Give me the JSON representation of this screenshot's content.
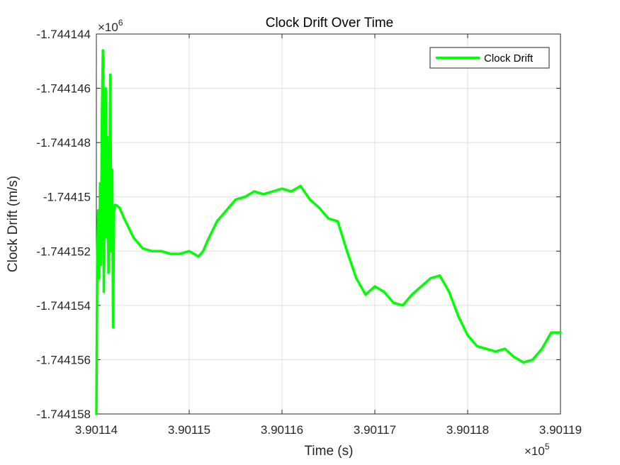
{
  "chart_data": {
    "type": "line",
    "title": "Clock Drift Over Time",
    "xlabel": "Time (s)",
    "ylabel": "Clock Drift (m/s)",
    "x_exponent_label": "×10",
    "x_exponent_power": "5",
    "y_exponent_label": "×10",
    "y_exponent_power": "6",
    "xlim": [
      390114,
      390119
    ],
    "ylim": [
      -1744158,
      -1744144
    ],
    "x_ticks": [
      390114,
      390115,
      390116,
      390117,
      390118,
      390119
    ],
    "x_tick_labels": [
      "3.90114",
      "3.90115",
      "3.90116",
      "3.90117",
      "3.90118",
      "3.90119"
    ],
    "y_ticks": [
      -1744158,
      -1744156,
      -1744154,
      -1744152,
      -1744150,
      -1744148,
      -1744146,
      -1744144
    ],
    "y_tick_labels": [
      "-1.744158",
      "-1.744156",
      "-1.744154",
      "-1.744152",
      "-1.74415",
      "-1.744148",
      "-1.744146",
      "-1.744144"
    ],
    "grid": true,
    "legend_position": "top-right",
    "line_color": "#00ff00",
    "series": [
      {
        "name": "Clock Drift",
        "x": [
          390114.0,
          390114.01,
          390114.02,
          390114.03,
          390114.04,
          390114.05,
          390114.06,
          390114.07,
          390114.08,
          390114.09,
          390114.1,
          390114.11,
          390114.12,
          390114.13,
          390114.14,
          390114.15,
          390114.16,
          390114.17,
          390114.18,
          390114.19,
          390114.2,
          390114.21,
          390114.25,
          390114.3,
          390114.4,
          390114.5,
          390114.6,
          390114.7,
          390114.8,
          390114.9,
          390115.0,
          390115.1,
          390115.15,
          390115.2,
          390115.3,
          390115.4,
          390115.5,
          390115.6,
          390115.7,
          390115.8,
          390115.9,
          390116.0,
          390116.1,
          390116.2,
          390116.3,
          390116.4,
          390116.5,
          390116.6,
          390116.7,
          390116.8,
          390116.9,
          390117.0,
          390117.1,
          390117.2,
          390117.3,
          390117.4,
          390117.5,
          390117.6,
          390117.7,
          390117.8,
          390117.9,
          390118.0,
          390118.1,
          390118.2,
          390118.3,
          390118.4,
          390118.5,
          390118.6,
          390118.7,
          390118.8,
          390118.9,
          390119.0
        ],
        "values": [
          -1744158.0,
          -1744152.0,
          -1744150.5,
          -1744153.0,
          -1744149.5,
          -1744152.5,
          -1744147.0,
          -1744144.6,
          -1744153.5,
          -1744148.5,
          -1744146.0,
          -1744151.5,
          -1744147.8,
          -1744152.8,
          -1744150.0,
          -1744145.5,
          -1744152.0,
          -1744149.0,
          -1744154.8,
          -1744150.5,
          -1744150.3,
          -1744150.3,
          -1744150.4,
          -1744150.8,
          -1744151.5,
          -1744151.9,
          -1744152.0,
          -1744152.0,
          -1744152.1,
          -1744152.1,
          -1744152.0,
          -1744152.2,
          -1744152.0,
          -1744151.6,
          -1744150.9,
          -1744150.5,
          -1744150.1,
          -1744150.0,
          -1744149.8,
          -1744149.9,
          -1744149.8,
          -1744149.7,
          -1744149.8,
          -1744149.6,
          -1744150.1,
          -1744150.4,
          -1744150.8,
          -1744150.9,
          -1744152.0,
          -1744153.0,
          -1744153.6,
          -1744153.3,
          -1744153.5,
          -1744153.9,
          -1744154.0,
          -1744153.6,
          -1744153.3,
          -1744153.0,
          -1744152.9,
          -1744153.5,
          -1744154.4,
          -1744155.1,
          -1744155.5,
          -1744155.6,
          -1744155.7,
          -1744155.6,
          -1744155.9,
          -1744156.1,
          -1744156.0,
          -1744155.6,
          -1744155.0,
          -1744155.0
        ]
      }
    ]
  }
}
